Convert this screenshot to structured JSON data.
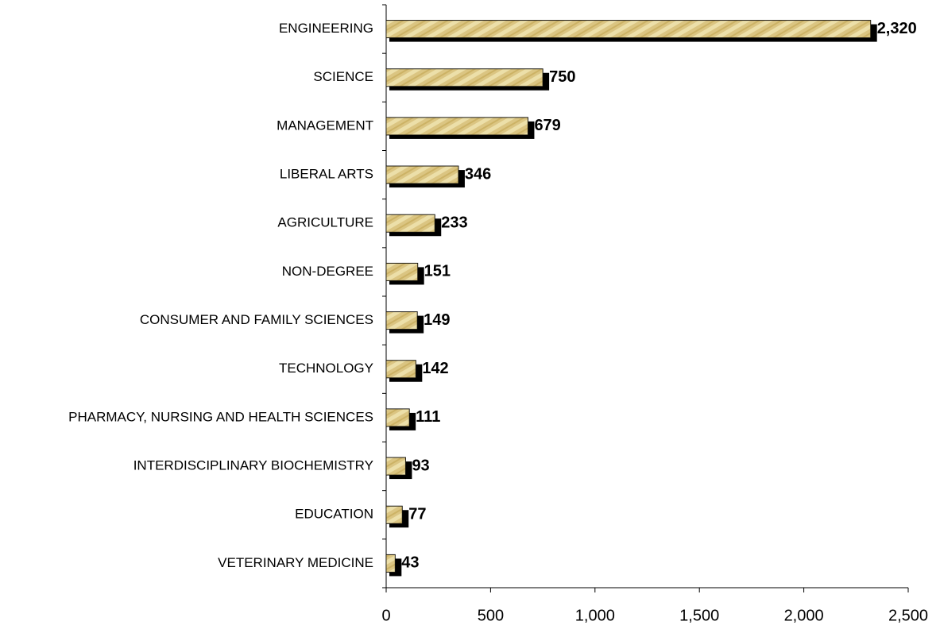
{
  "chart_data": {
    "type": "barh",
    "categories": [
      "ENGINEERING",
      "SCIENCE",
      "MANAGEMENT",
      "LIBERAL ARTS",
      "AGRICULTURE",
      "NON-DEGREE",
      "CONSUMER AND FAMILY SCIENCES",
      "TECHNOLOGY",
      "PHARMACY, NURSING AND HEALTH SCIENCES",
      "INTERDISCIPLINARY BIOCHEMISTRY",
      "EDUCATION",
      "VETERINARY MEDICINE"
    ],
    "values": [
      2320,
      750,
      679,
      346,
      233,
      151,
      149,
      142,
      111,
      93,
      77,
      43
    ],
    "value_labels": [
      "2,320",
      "750",
      "679",
      "346",
      "233",
      "151",
      "149",
      "142",
      "111",
      "93",
      "77",
      "43"
    ],
    "color": "#d9c27a",
    "xlim": [
      0,
      2500
    ],
    "xticks": [
      0,
      500,
      {
        "value": 1000,
        "label": "1,000"
      },
      {
        "value": 1500,
        "label": "1,500"
      },
      {
        "value": 2000,
        "label": "2,000"
      },
      {
        "value": 2500,
        "label": "2,500"
      }
    ],
    "grid": false
  }
}
